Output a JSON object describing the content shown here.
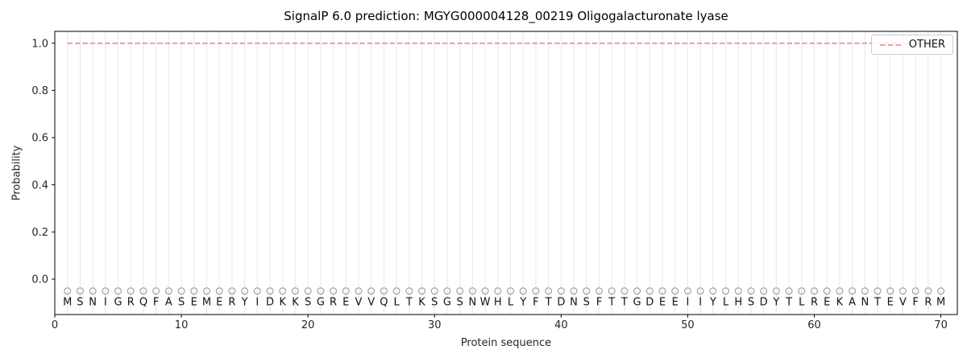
{
  "chart_data": {
    "type": "line",
    "title": "SignalP 6.0 prediction: MGYG000004128_00219 Oligogalacturonate lyase",
    "xlabel": "Protein sequence",
    "ylabel": "Probability",
    "xlim": [
      0,
      71.3
    ],
    "ylim": [
      -0.15,
      1.05
    ],
    "xticks": [
      0,
      10,
      20,
      30,
      40,
      50,
      60,
      70
    ],
    "yticks": [
      0.0,
      0.2,
      0.4,
      0.6,
      0.8,
      1.0
    ],
    "grid": {
      "vertical_per_residue": true,
      "color": "#ebebeb"
    },
    "legend": {
      "position": "upper right",
      "entries": [
        {
          "label": "OTHER",
          "color": "#f08080",
          "linestyle": "dashed"
        }
      ]
    },
    "sequence": "MSNIGRQFASEMERYIDKKSGREVVQLTKSGSNWHLYFTDNSFTTGDEEIIYLHSDYTLREKANTEVFRM",
    "series": [
      {
        "name": "OTHER",
        "color": "#f08080",
        "linestyle": "dashed",
        "x": [
          1,
          2,
          3,
          4,
          5,
          6,
          7,
          8,
          9,
          10,
          11,
          12,
          13,
          14,
          15,
          16,
          17,
          18,
          19,
          20,
          21,
          22,
          23,
          24,
          25,
          26,
          27,
          28,
          29,
          30,
          31,
          32,
          33,
          34,
          35,
          36,
          37,
          38,
          39,
          40,
          41,
          42,
          43,
          44,
          45,
          46,
          47,
          48,
          49,
          50,
          51,
          52,
          53,
          54,
          55,
          56,
          57,
          58,
          59,
          60,
          61,
          62,
          63,
          64,
          65,
          66,
          67,
          68,
          69,
          70
        ],
        "values": [
          1.0,
          1.0,
          1.0,
          1.0,
          1.0,
          1.0,
          1.0,
          1.0,
          1.0,
          1.0,
          1.0,
          1.0,
          1.0,
          1.0,
          1.0,
          1.0,
          1.0,
          1.0,
          1.0,
          1.0,
          1.0,
          1.0,
          1.0,
          1.0,
          1.0,
          1.0,
          1.0,
          1.0,
          1.0,
          1.0,
          1.0,
          1.0,
          1.0,
          1.0,
          1.0,
          1.0,
          1.0,
          1.0,
          1.0,
          1.0,
          1.0,
          1.0,
          1.0,
          1.0,
          1.0,
          1.0,
          1.0,
          1.0,
          1.0,
          1.0,
          1.0,
          1.0,
          1.0,
          1.0,
          1.0,
          1.0,
          1.0,
          1.0,
          1.0,
          1.0,
          1.0,
          1.0,
          1.0,
          1.0,
          1.0,
          1.0,
          1.0,
          1.0,
          1.0,
          1.0
        ]
      }
    ],
    "residue_markers": {
      "symbol": "circle-outline",
      "y_value": -0.05,
      "color": "#9a9a9a"
    },
    "letter_y_value": -0.095,
    "axis_color": "#000000"
  }
}
